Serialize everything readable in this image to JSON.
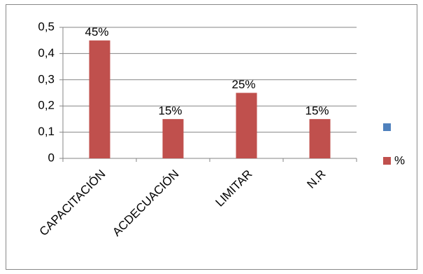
{
  "chart_data": {
    "type": "bar",
    "categories": [
      "CAPACITACIÓN",
      "ACDECUACIÓN",
      "LIMITAR",
      "N.R"
    ],
    "series": [
      {
        "name": null,
        "color": "#4f81bd",
        "values": [
          null,
          null,
          null,
          null
        ]
      },
      {
        "name": "%",
        "color": "#c0504d",
        "values": [
          0.45,
          0.15,
          0.25,
          0.15
        ],
        "value_labels": [
          "45%",
          "15%",
          "25%",
          "15%"
        ]
      }
    ],
    "ylim": [
      0,
      0.5
    ],
    "yticks": [
      0,
      {
        "value": 0.1,
        "label": "0,1"
      },
      {
        "value": 0.2,
        "label": "0,2"
      },
      {
        "value": 0.3,
        "label": "0,3"
      },
      {
        "value": 0.4,
        "label": "0,4"
      },
      {
        "value": 0.5,
        "label": "0,5"
      }
    ],
    "grid": true,
    "legend": "right"
  }
}
